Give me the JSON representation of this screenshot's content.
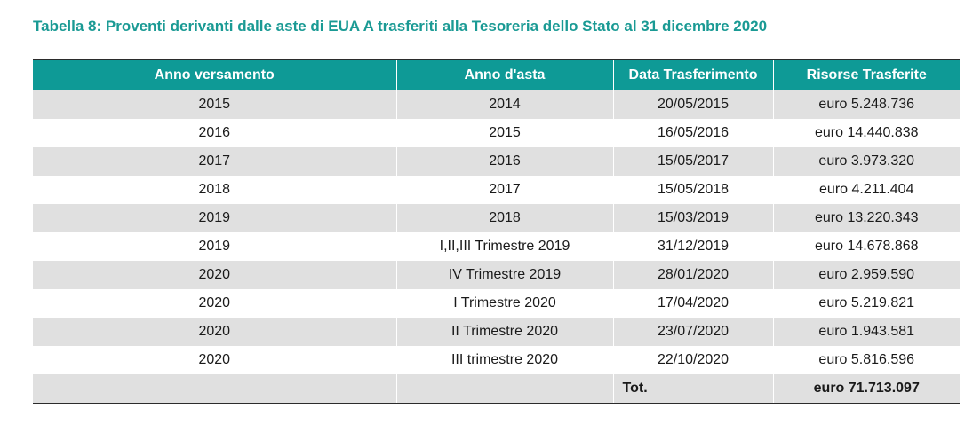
{
  "caption": "Tabella 8: Proventi derivanti dalle aste di EUA A trasferiti alla Tesoreria dello Stato al 31 dicembre 2020",
  "colors": {
    "caption": "#1a9a94",
    "header_bg": "#0e9a96",
    "row_shade": "#e0e0e0"
  },
  "table": {
    "headers": [
      "Anno versamento",
      "Anno d'asta",
      "Data Trasferimento",
      "Risorse Trasferite"
    ],
    "rows": [
      [
        "2015",
        "2014",
        "20/05/2015",
        "euro 5.248.736"
      ],
      [
        "2016",
        "2015",
        "16/05/2016",
        "euro 14.440.838"
      ],
      [
        "2017",
        "2016",
        "15/05/2017",
        "euro 3.973.320"
      ],
      [
        "2018",
        "2017",
        "15/05/2018",
        "euro 4.211.404"
      ],
      [
        "2019",
        "2018",
        "15/03/2019",
        "euro 13.220.343"
      ],
      [
        "2019",
        "I,II,III Trimestre 2019",
        "31/12/2019",
        "euro 14.678.868"
      ],
      [
        "2020",
        "IV Trimestre 2019",
        "28/01/2020",
        "euro 2.959.590"
      ],
      [
        "2020",
        "I Trimestre 2020",
        "17/04/2020",
        "euro 5.219.821"
      ],
      [
        "2020",
        "II Trimestre 2020",
        "23/07/2020",
        "euro 1.943.581"
      ],
      [
        "2020",
        "III trimestre 2020",
        "22/10/2020",
        "euro 5.816.596"
      ]
    ],
    "total": {
      "label": "Tot.",
      "value": "euro 71.713.097"
    }
  }
}
